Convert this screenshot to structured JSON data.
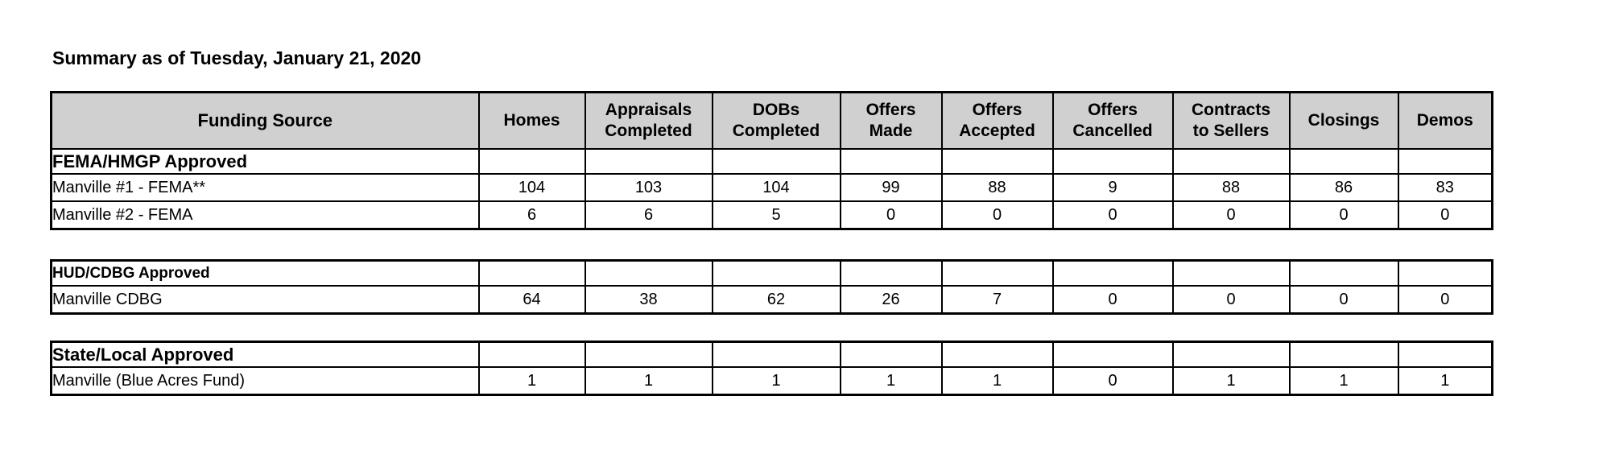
{
  "title": "Summary as of Tuesday, January 21, 2020",
  "columns": [
    {
      "id": "funding-source",
      "label": "Funding Source"
    },
    {
      "id": "homes",
      "label": "Homes"
    },
    {
      "id": "appraisals-completed",
      "label": "Appraisals\nCompleted"
    },
    {
      "id": "dobs-completed",
      "label": "DOBs\nCompleted"
    },
    {
      "id": "offers-made",
      "label": "Offers\nMade"
    },
    {
      "id": "offers-accepted",
      "label": "Offers\nAccepted"
    },
    {
      "id": "offers-cancelled",
      "label": "Offers\nCancelled"
    },
    {
      "id": "contracts-to-sellers",
      "label": "Contracts\nto Sellers"
    },
    {
      "id": "closings",
      "label": "Closings"
    },
    {
      "id": "demos",
      "label": "Demos"
    }
  ],
  "sections": [
    {
      "header": "FEMA/HMGP Approved",
      "rows": [
        {
          "funding_source": "Manville #1 - FEMA**",
          "values": [
            104,
            103,
            104,
            99,
            88,
            9,
            88,
            86,
            83
          ]
        },
        {
          "funding_source": "Manville #2 - FEMA",
          "values": [
            6,
            6,
            5,
            0,
            0,
            0,
            0,
            0,
            0
          ]
        }
      ]
    },
    {
      "header": "HUD/CDBG Approved",
      "rows": [
        {
          "funding_source": "Manville CDBG",
          "values": [
            64,
            38,
            62,
            26,
            7,
            0,
            0,
            0,
            0
          ]
        }
      ]
    },
    {
      "header": "State/Local Approved",
      "rows": [
        {
          "funding_source": "Manville (Blue Acres Fund)",
          "values": [
            1,
            1,
            1,
            1,
            1,
            0,
            1,
            1,
            1
          ]
        }
      ]
    }
  ],
  "colors": {
    "header_background": "#d0d0d0",
    "border": "#000000",
    "page_background": "#ffffff",
    "text": "#000000"
  }
}
